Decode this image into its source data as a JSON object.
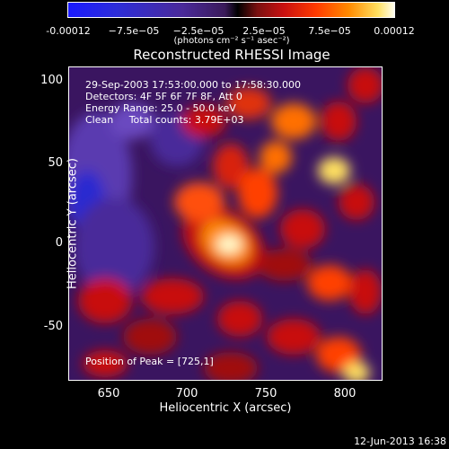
{
  "colorbar": {
    "ticks": [
      "-0.00012",
      "−7.5e−05",
      "−2.5e−05",
      "2.5e−05",
      "7.5e−05",
      "0.00012"
    ],
    "units": "(photons cm⁻² s⁻¹ asec⁻²)"
  },
  "title": "Reconstructed RHESSI Image",
  "info": {
    "time": "29-Sep-2003 17:53:00.000 to 17:58:30.000",
    "detectors": "Detectors: 4F 5F 6F 7F 8F, Att 0",
    "energy": "Energy Range: 25.0 - 50.0 keV",
    "method": "Clean     Total counts: 3.79E+03"
  },
  "peak": "Position of Peak = [725,1]",
  "axes": {
    "xlabel": "Heliocentric X (arcsec)",
    "ylabel": "Heliocentric Y (arcsec)",
    "xticks": [
      "650",
      "700",
      "750",
      "800"
    ],
    "yticks": [
      "100",
      "50",
      "0",
      "-50"
    ]
  },
  "timestamp": "12-Jun-2013 16:38"
}
